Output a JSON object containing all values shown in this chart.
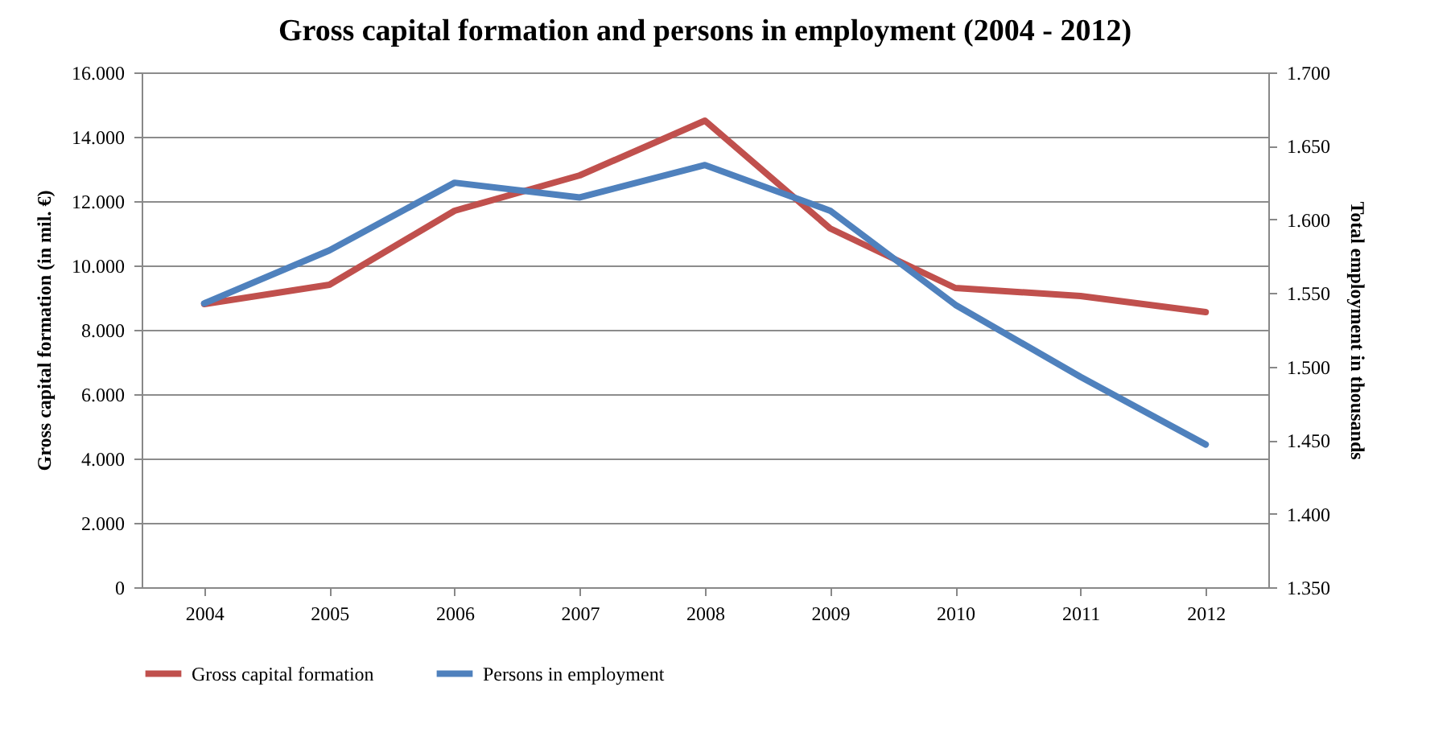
{
  "chart_data": {
    "type": "line",
    "title": "Gross capital formation and persons in employment (2004 - 2012)",
    "ylabel": "Gross capital formation (in mil. €)",
    "y2label": "Total employment in thousands",
    "categories": [
      "2004",
      "2005",
      "2006",
      "2007",
      "2008",
      "2009",
      "2010",
      "2011",
      "2012"
    ],
    "series": [
      {
        "name": "Gross capital formation",
        "color": "#c0504d",
        "values": [
          8800,
          9400,
          11700,
          12800,
          14500,
          11150,
          9300,
          9050,
          8550
        ]
      },
      {
        "name": "Persons in employment",
        "color": "#4f81bd",
        "axis": "y2",
        "values": [
          1543,
          1579,
          1625,
          1615,
          1637,
          1606,
          1542,
          1493,
          1447
        ]
      }
    ],
    "ylim": [
      0,
      16000
    ],
    "yticks": [
      0,
      {
        "value": 2000,
        "label": "2.000"
      },
      {
        "value": 4000,
        "label": "4.000"
      },
      {
        "value": 6000,
        "label": "6.000"
      },
      {
        "value": 8000,
        "label": "8.000"
      },
      {
        "value": 10000,
        "label": "10.000"
      },
      {
        "value": 12000,
        "label": "12.000"
      },
      {
        "value": 14000,
        "label": "14.000"
      },
      {
        "value": 16000,
        "label": "16.000"
      }
    ],
    "y2lim": [
      1350,
      1700
    ],
    "y2ticks": [
      {
        "value": 1350,
        "label": "1.350"
      },
      {
        "value": 1400,
        "label": "1.400"
      },
      {
        "value": 1450,
        "label": "1.450"
      },
      {
        "value": 1500,
        "label": "1.500"
      },
      {
        "value": 1550,
        "label": "1.550"
      },
      {
        "value": 1600,
        "label": "1.600"
      },
      {
        "value": 1650,
        "label": "1.650"
      },
      {
        "value": 1700,
        "label": "1.700"
      }
    ],
    "grid": "y",
    "legend": "bottom",
    "marker": "none",
    "line_style": "solid"
  }
}
